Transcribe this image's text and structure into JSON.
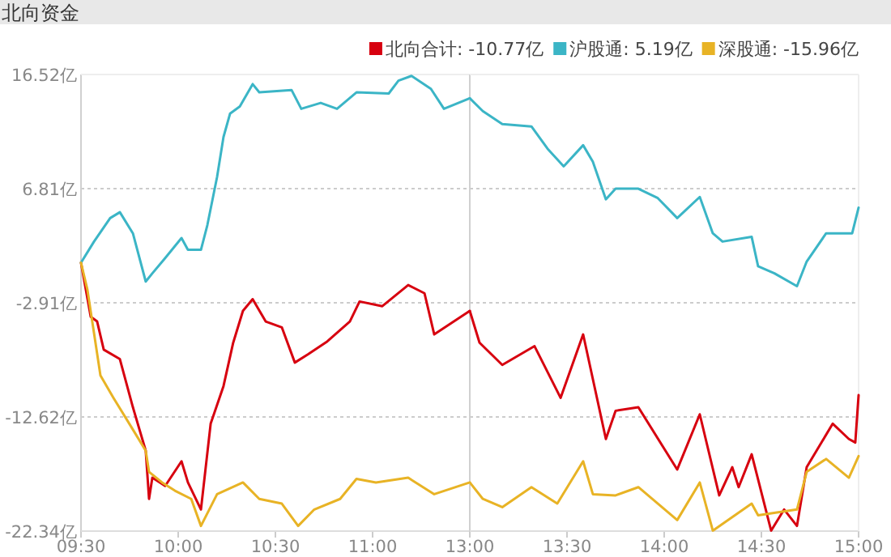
{
  "chart_data": [
    {
      "type": "line",
      "title": "北向资金",
      "xlim": [
        9.5,
        11.5
      ],
      "xticks": [
        {
          "value": 9.5,
          "label": "09:30"
        },
        {
          "value": 10,
          "label": "10:00"
        },
        {
          "value": 10.5,
          "label": "10:30"
        },
        {
          "value": 11,
          "label": "11:00"
        }
      ],
      "ylim": [
        -22.34,
        16.52
      ],
      "yticks": [
        {
          "value": -22.34,
          "label": "-22.34亿"
        },
        {
          "value": -12.62,
          "label": "-12.62亿"
        },
        {
          "value": -2.91,
          "label": "-2.91亿"
        },
        {
          "value": 6.81,
          "label": "6.81亿"
        },
        {
          "value": 16.52,
          "label": "16.52亿"
        }
      ],
      "grid": "y",
      "legend": "top right",
      "series": [
        {
          "name": "北向合计: -10.77亿",
          "color": "#d7000f",
          "x": [
            9.5,
            9.55,
            9.583,
            9.617,
            9.7,
            9.767,
            9.833,
            9.85,
            9.867,
            9.933,
            10.017,
            10.05,
            10.117,
            10.167,
            10.233,
            10.283,
            10.333,
            10.383,
            10.45,
            10.533,
            10.6,
            10.667,
            10.767,
            10.883,
            10.933,
            11.05,
            11.183,
            11.267,
            11.317,
            11.5
          ],
          "values": [
            0.5,
            -4.1,
            -4.5,
            -6.9,
            -7.7,
            -11.8,
            -15.5,
            -19.6,
            -17.8,
            -18.5,
            -16.4,
            -18.2,
            -20.5,
            -13.2,
            -10.0,
            -6.3,
            -3.6,
            -2.6,
            -4.5,
            -5.0,
            -8.0,
            -7.3,
            -6.2,
            -4.5,
            -2.8,
            -3.2,
            -1.4,
            -2.1,
            -5.6,
            -3.6
          ]
        },
        {
          "name": "沪股通: 5.19亿",
          "color": "#3bb5c6",
          "x": [
            9.5,
            9.567,
            9.65,
            9.7,
            9.767,
            9.833,
            9.867,
            9.933,
            10.017,
            10.05,
            10.117,
            10.15,
            10.2,
            10.233,
            10.267,
            10.317,
            10.383,
            10.417,
            10.583,
            10.633,
            10.733,
            10.817,
            10.917,
            11.083,
            11.133,
            11.2,
            11.3,
            11.367,
            11.5
          ],
          "values": [
            0.5,
            2.3,
            4.3,
            4.8,
            3.0,
            -1.1,
            -0.4,
            0.9,
            2.6,
            1.6,
            1.6,
            3.7,
            7.8,
            11.2,
            13.2,
            13.8,
            15.7,
            15.0,
            15.2,
            13.6,
            14.1,
            13.6,
            15.0,
            14.9,
            16.0,
            16.4,
            15.3,
            13.6,
            14.5
          ]
        },
        {
          "name": "深股通: -15.96亿",
          "color": "#e8b325",
          "x": [
            9.5,
            9.533,
            9.567,
            9.6,
            9.667,
            9.767,
            9.833,
            9.85,
            9.917,
            9.983,
            10.067,
            10.117,
            10.2,
            10.333,
            10.417,
            10.533,
            10.617,
            10.7,
            10.833,
            10.917,
            11.017,
            11.183,
            11.317,
            11.5
          ],
          "values": [
            0.5,
            -1.8,
            -5.5,
            -9.1,
            -11.0,
            -13.7,
            -15.5,
            -17.3,
            -18.2,
            -18.9,
            -19.6,
            -21.9,
            -19.2,
            -18.2,
            -19.6,
            -20.0,
            -21.9,
            -20.5,
            -19.6,
            -17.9,
            -18.2,
            -17.8,
            -19.2,
            -18.2
          ]
        }
      ]
    },
    {
      "type": "line",
      "xlim": [
        13,
        15
      ],
      "xticks": [
        {
          "value": 13,
          "label": "13:00"
        },
        {
          "value": 13.5,
          "label": "13:30"
        },
        {
          "value": 14,
          "label": "14:00"
        },
        {
          "value": 14.5,
          "label": "14:30"
        },
        {
          "value": 15,
          "label": "15:00"
        }
      ],
      "ylim": [
        -22.34,
        16.52
      ],
      "yticks": [
        -22.34,
        -12.62,
        -2.91,
        6.81,
        16.52
      ],
      "tick_labels": "x",
      "grid": "y",
      "series": [
        {
          "color": "#d7000f",
          "x": [
            13,
            13.05,
            13.167,
            13.333,
            13.467,
            13.583,
            13.7,
            13.75,
            13.867,
            14.067,
            14.183,
            14.283,
            14.35,
            14.383,
            14.45,
            14.55,
            14.617,
            14.683,
            14.733,
            14.867,
            14.95,
            14.983,
            15
          ],
          "values": [
            -3.6,
            -6.3,
            -8.2,
            -6.6,
            -11.0,
            -5.6,
            -14.5,
            -12.1,
            -11.8,
            -17.1,
            -12.4,
            -19.3,
            -16.9,
            -18.6,
            -15.8,
            -22.3,
            -20.5,
            -21.9,
            -16.9,
            -13.2,
            -14.5,
            -14.8,
            -10.77
          ]
        },
        {
          "color": "#3bb5c6",
          "x": [
            13,
            13.067,
            13.167,
            13.317,
            13.4,
            13.483,
            13.583,
            13.633,
            13.7,
            13.75,
            13.867,
            13.967,
            14.067,
            14.183,
            14.25,
            14.3,
            14.45,
            14.483,
            14.567,
            14.683,
            14.733,
            14.833,
            14.967,
            15
          ],
          "values": [
            14.5,
            13.4,
            12.3,
            12.1,
            10.2,
            8.7,
            10.5,
            9.1,
            5.9,
            6.8,
            6.8,
            6.0,
            4.3,
            6.1,
            3.0,
            2.3,
            2.7,
            0.2,
            -0.4,
            -1.5,
            0.6,
            3.0,
            3.0,
            5.19
          ]
        },
        {
          "color": "#e8b325",
          "x": [
            13,
            13.067,
            13.167,
            13.317,
            13.45,
            13.583,
            13.633,
            13.75,
            13.867,
            14.067,
            14.183,
            14.25,
            14.45,
            14.483,
            14.683,
            14.733,
            14.833,
            14.95,
            15
          ],
          "values": [
            -18.2,
            -19.6,
            -20.3,
            -18.6,
            -20.0,
            -16.4,
            -19.2,
            -19.3,
            -18.6,
            -21.4,
            -18.2,
            -22.3,
            -20.0,
            -21.0,
            -20.5,
            -17.3,
            -16.2,
            -17.8,
            -15.96
          ]
        }
      ]
    }
  ]
}
